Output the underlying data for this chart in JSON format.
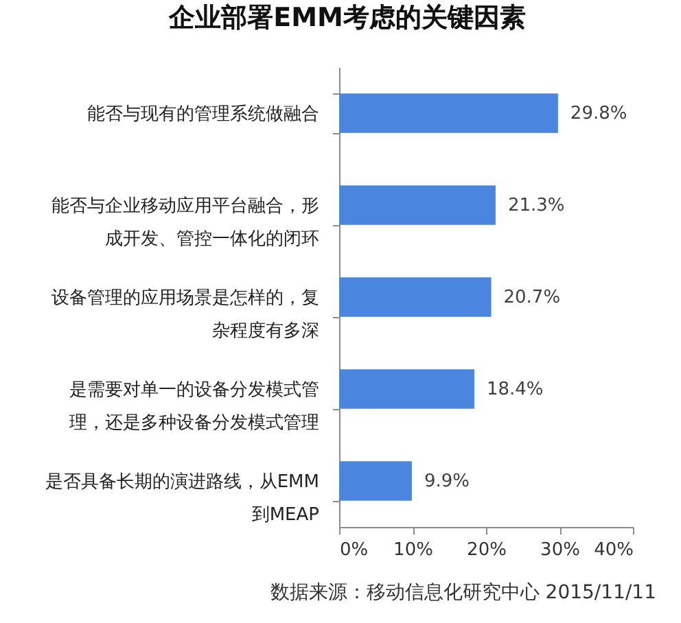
{
  "chart_data": {
    "type": "bar",
    "orientation": "horizontal",
    "title": "企业部署EMM考虑的关键因素",
    "categories": [
      "能否与现有的管理系统做融合",
      "能否与企业移动应用平台融合，形成开发、管控一体化的闭环",
      "设备管理的应用场景是怎样的，复杂程度有多深",
      "是需要对单一的设备分发模式管理，还是多种设备分发模式管理",
      "是否具备长期的演进路线，从EMM到MEAP"
    ],
    "values": [
      29.8,
      21.3,
      20.7,
      18.4,
      9.9
    ],
    "value_labels": [
      "29.8%",
      "21.3%",
      "20.7%",
      "18.4%",
      "9.9%"
    ],
    "color": "#4a86e0",
    "xlim": [
      0,
      40
    ],
    "xticks": [
      {
        "value": 0,
        "label": "0%"
      },
      {
        "value": 10,
        "label": "10%"
      },
      {
        "value": 20,
        "label": "20%"
      },
      {
        "value": 30,
        "label": "30%"
      },
      {
        "value": 40,
        "label": "40%"
      }
    ],
    "annotations": [
      "数据来源：移动信息化研究中心 2015/11/11"
    ]
  }
}
